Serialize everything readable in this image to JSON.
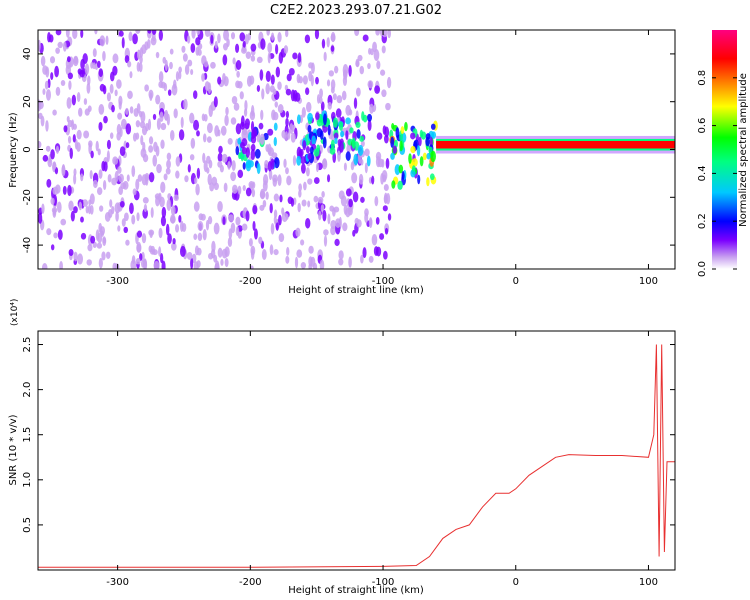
{
  "title": "C2E2.2023.293.07.21.G02",
  "chart_data": [
    {
      "type": "heatmap",
      "title": "C2E2.2023.293.07.21.G02",
      "xlabel": "Height of straight line (km)",
      "ylabel": "Frequency (Hz)",
      "xlim": [
        -360,
        120
      ],
      "ylim": [
        -50,
        50
      ],
      "xticks": [
        -300,
        -200,
        -100,
        0,
        100
      ],
      "yticks": [
        -40,
        -20,
        0,
        20,
        40
      ],
      "colorbar": {
        "label": "Normalized spectral amplitude",
        "range": [
          0,
          1
        ],
        "ticks": [
          0.0,
          0.2,
          0.4,
          0.6,
          0.8
        ],
        "colors": [
          "#ffffff",
          "#c8a0f0",
          "#7b00ff",
          "#0000ff",
          "#00c8ff",
          "#00ff80",
          "#00ff00",
          "#ffff00",
          "#ff8000",
          "#ff0000",
          "#ff0080"
        ]
      },
      "features": [
        {
          "x_range": [
            -360,
            -95
          ],
          "freq_range": [
            -50,
            50
          ],
          "amplitude": 0.1
        },
        {
          "x_range": [
            -210,
            -180
          ],
          "freq_range": [
            -8,
            10
          ],
          "amplitude": 0.25
        },
        {
          "x_range": [
            -165,
            -110
          ],
          "freq_range": [
            -5,
            15
          ],
          "amplitude": 0.3
        },
        {
          "x_range": [
            -95,
            -60
          ],
          "freq_range": [
            -15,
            10
          ],
          "amplitude": 0.4
        },
        {
          "x_range": [
            -60,
            120
          ],
          "freq_range": [
            0,
            4
          ],
          "amplitude": 0.95
        }
      ]
    },
    {
      "type": "line",
      "xlabel": "Height of straight line (km)",
      "ylabel": "SNR (10 * v/v)",
      "exponent_label": "(x10⁴)",
      "xlim": [
        -360,
        120
      ],
      "ylim": [
        0,
        2.65
      ],
      "xticks": [
        -300,
        -200,
        -100,
        0,
        100
      ],
      "yticks": [
        0.5,
        1.0,
        1.5,
        2.0,
        2.5
      ],
      "color": "#e83030",
      "series": [
        {
          "x": [
            -360,
            -300,
            -200,
            -100,
            -75,
            -65,
            -55,
            -45,
            -35,
            -25,
            -15,
            -5,
            0,
            10,
            20,
            30,
            40,
            60,
            80,
            100,
            104,
            106,
            108,
            110,
            112,
            114,
            120
          ],
          "y": [
            0.03,
            0.03,
            0.03,
            0.04,
            0.05,
            0.15,
            0.35,
            0.45,
            0.5,
            0.7,
            0.85,
            0.85,
            0.9,
            1.05,
            1.15,
            1.25,
            1.28,
            1.27,
            1.27,
            1.25,
            1.5,
            2.5,
            0.15,
            2.5,
            0.2,
            1.2,
            1.2
          ]
        }
      ]
    }
  ]
}
